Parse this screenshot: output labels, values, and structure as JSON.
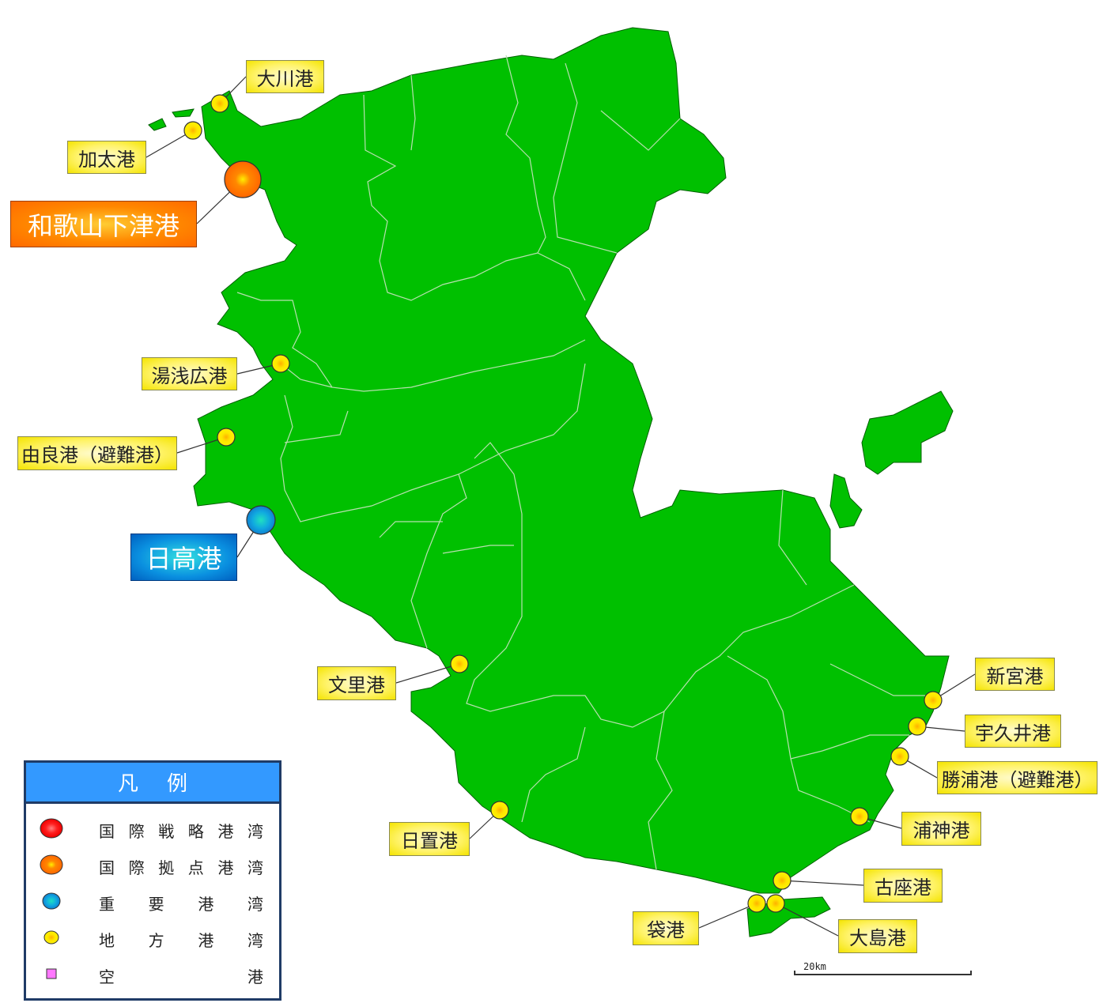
{
  "colors": {
    "land": "#00c000",
    "boundary": "#a0d8a0",
    "intl_strategic": "#ff2020",
    "intl_hub": "#ff7a00",
    "major": "#1aa0e0",
    "local": "#ffe600",
    "airport": "#ff77ff"
  },
  "ports": [
    {
      "name": "大川港",
      "class": "local"
    },
    {
      "name": "加太港",
      "class": "local"
    },
    {
      "name": "和歌山下津港",
      "class": "intl_hub"
    },
    {
      "name": "湯浅広港",
      "class": "local"
    },
    {
      "name": "由良港（避難港）",
      "class": "local"
    },
    {
      "name": "日高港",
      "class": "major"
    },
    {
      "name": "文里港",
      "class": "local"
    },
    {
      "name": "日置港",
      "class": "local"
    },
    {
      "name": "新宮港",
      "class": "local"
    },
    {
      "name": "宇久井港",
      "class": "local"
    },
    {
      "name": "勝浦港（避難港）",
      "class": "local"
    },
    {
      "name": "浦神港",
      "class": "local"
    },
    {
      "name": "古座港",
      "class": "local"
    },
    {
      "name": "袋港",
      "class": "local"
    },
    {
      "name": "大島港",
      "class": "local"
    }
  ],
  "legend": {
    "title": "凡例",
    "items": [
      {
        "symbol": "red-circle",
        "chars": [
          "国",
          "際",
          "戦",
          "略",
          "港",
          "湾"
        ]
      },
      {
        "symbol": "orange-circle",
        "chars": [
          "国",
          "際",
          "拠",
          "点",
          "港",
          "湾"
        ]
      },
      {
        "symbol": "blue-circle",
        "chars": [
          "重",
          "要",
          "港",
          "湾"
        ]
      },
      {
        "symbol": "yellow-circle",
        "chars": [
          "地",
          "方",
          "港",
          "湾"
        ]
      },
      {
        "symbol": "pink-square",
        "chars": [
          "空",
          "港"
        ]
      }
    ]
  },
  "scale_bar": {
    "label": "20km"
  }
}
